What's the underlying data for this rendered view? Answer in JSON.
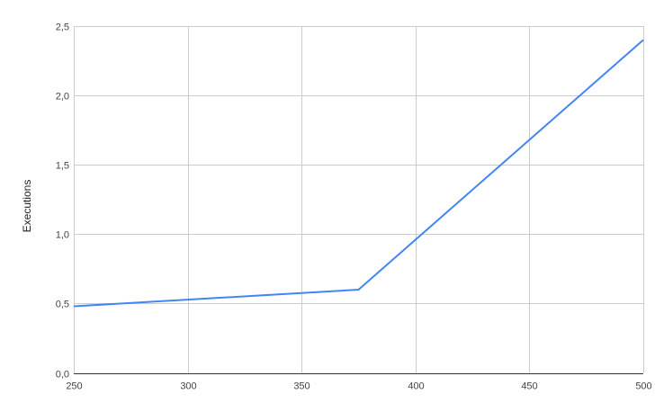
{
  "chart_data": {
    "type": "line",
    "title": "",
    "xlabel": "",
    "ylabel": "Executions",
    "xlim": [
      250,
      500
    ],
    "ylim": [
      0,
      2.5
    ],
    "x_ticks": [
      "250",
      "300",
      "350",
      "400",
      "450",
      "500"
    ],
    "y_ticks": [
      "0,0",
      "0,5",
      "1,0",
      "1,5",
      "2,0",
      "2,5"
    ],
    "grid": true,
    "series": [
      {
        "color": "#4285f4",
        "points": [
          [
            250,
            0.48
          ],
          [
            375,
            0.6
          ],
          [
            500,
            2.4
          ]
        ]
      }
    ]
  }
}
